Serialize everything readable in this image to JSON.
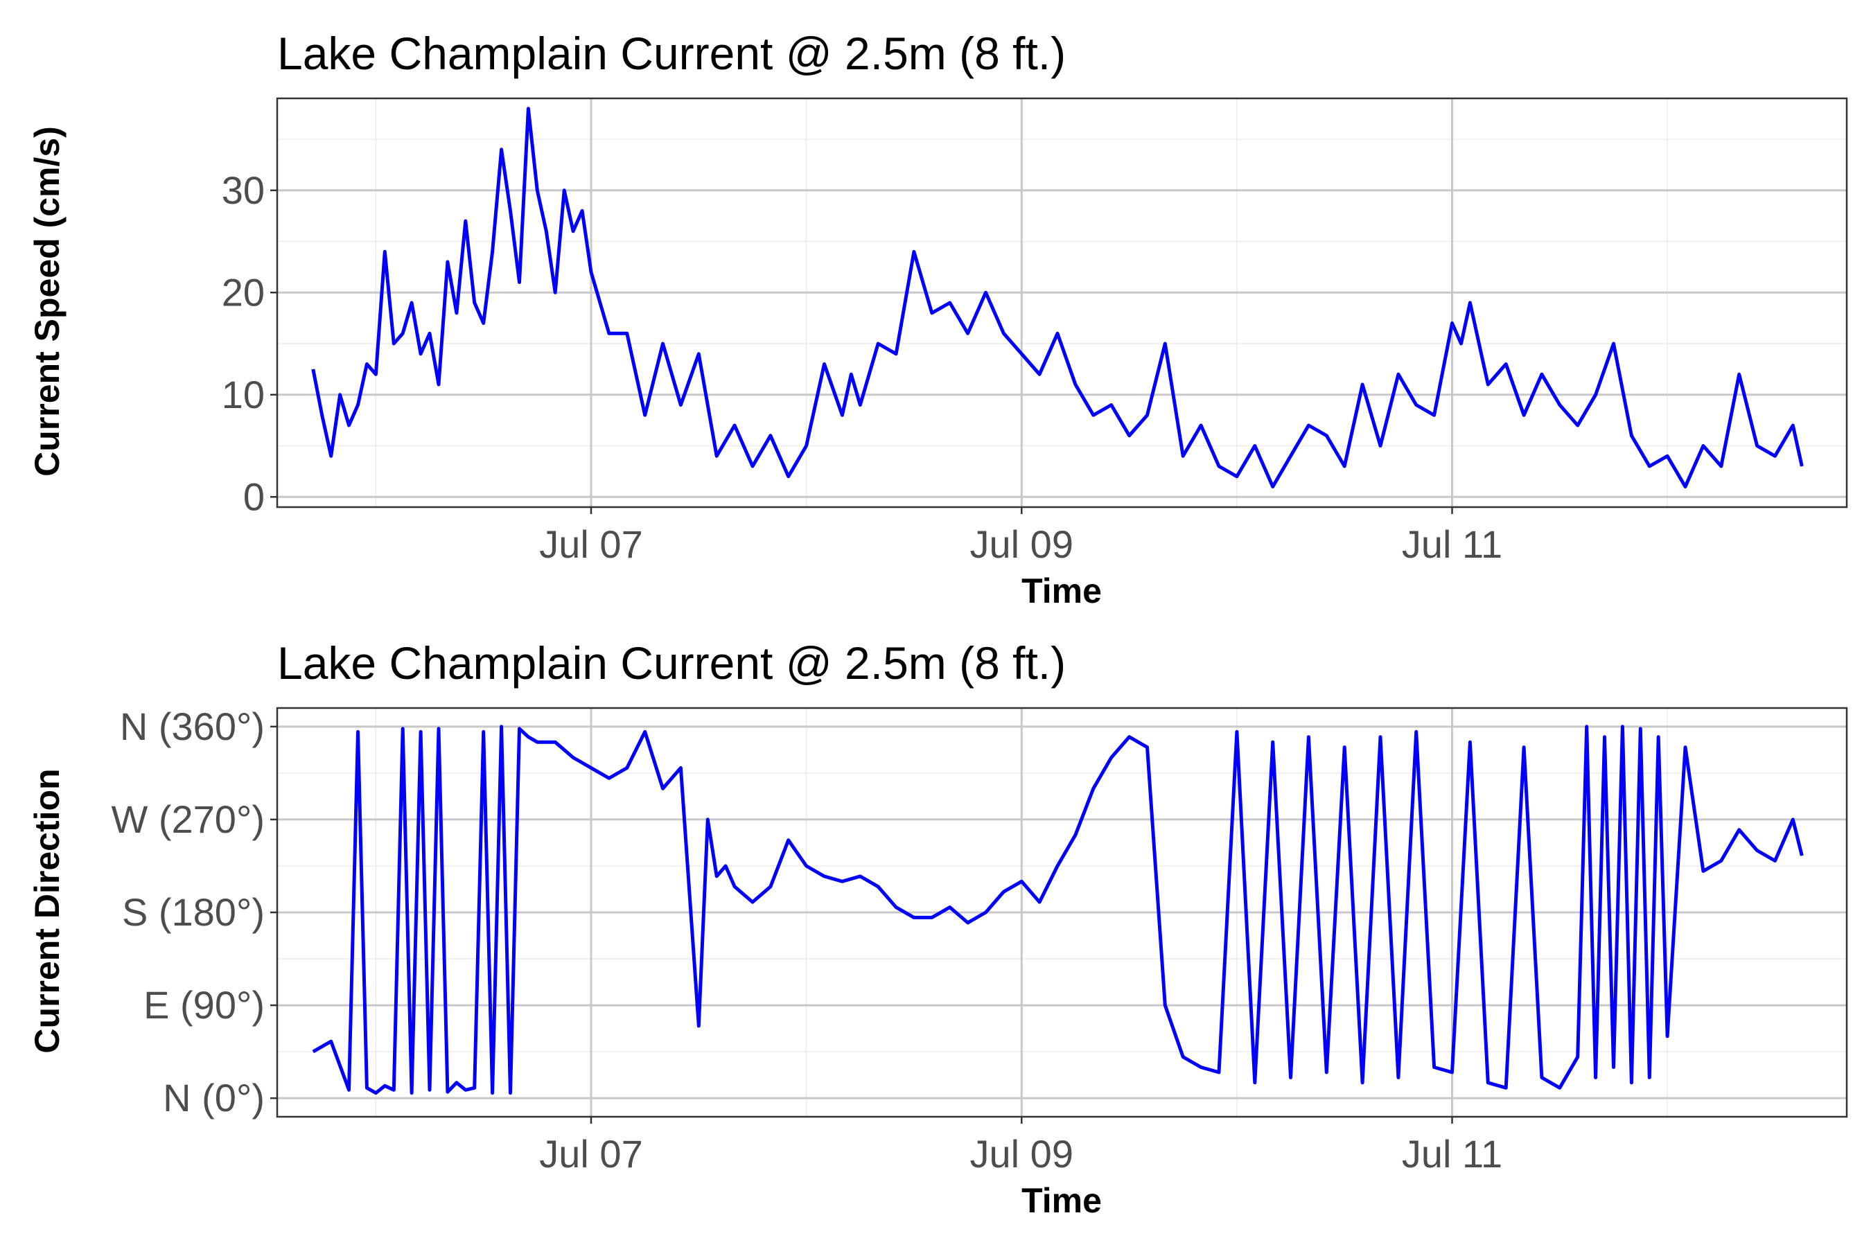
{
  "chart_data": [
    {
      "type": "line",
      "title": "Lake Champlain Current @ 2.5m (8 ft.)",
      "xlabel": "Time",
      "ylabel": "Current Speed (cm/s)",
      "x_ticks": [
        "Jul 07",
        "Jul 09",
        "Jul 11"
      ],
      "y_ticks": [
        "0",
        "10",
        "20",
        "30"
      ],
      "ylim": [
        -1,
        39
      ],
      "xlim": [
        "2023-07-05T13:00",
        "2023-07-12T20:00"
      ],
      "grid": true,
      "series": [
        {
          "color": "#0000ff",
          "x": [
            "07-05 17:00",
            "07-05 18:00",
            "07-05 19:00",
            "07-05 20:00",
            "07-05 21:00",
            "07-05 22:00",
            "07-05 23:00",
            "07-06 00:00",
            "07-06 01:00",
            "07-06 02:00",
            "07-06 03:00",
            "07-06 04:00",
            "07-06 05:00",
            "07-06 06:00",
            "07-06 07:00",
            "07-06 08:00",
            "07-06 09:00",
            "07-06 10:00",
            "07-06 11:00",
            "07-06 12:00",
            "07-06 13:00",
            "07-06 14:00",
            "07-06 15:00",
            "07-06 16:00",
            "07-06 17:00",
            "07-06 18:00",
            "07-06 19:00",
            "07-06 20:00",
            "07-06 21:00",
            "07-06 22:00",
            "07-06 23:00",
            "07-07 00:00",
            "07-07 02:00",
            "07-07 04:00",
            "07-07 06:00",
            "07-07 08:00",
            "07-07 10:00",
            "07-07 12:00",
            "07-07 14:00",
            "07-07 16:00",
            "07-07 18:00",
            "07-07 20:00",
            "07-07 22:00",
            "07-08 00:00",
            "07-08 02:00",
            "07-08 04:00",
            "07-08 05:00",
            "07-08 06:00",
            "07-08 08:00",
            "07-08 10:00",
            "07-08 12:00",
            "07-08 14:00",
            "07-08 16:00",
            "07-08 18:00",
            "07-08 20:00",
            "07-08 22:00",
            "07-09 00:00",
            "07-09 02:00",
            "07-09 04:00",
            "07-09 06:00",
            "07-09 08:00",
            "07-09 10:00",
            "07-09 12:00",
            "07-09 14:00",
            "07-09 16:00",
            "07-09 18:00",
            "07-09 20:00",
            "07-09 22:00",
            "07-10 00:00",
            "07-10 02:00",
            "07-10 04:00",
            "07-10 06:00",
            "07-10 08:00",
            "07-10 10:00",
            "07-10 12:00",
            "07-10 14:00",
            "07-10 16:00",
            "07-10 18:00",
            "07-10 20:00",
            "07-10 22:00",
            "07-11 00:00",
            "07-11 01:00",
            "07-11 02:00",
            "07-11 04:00",
            "07-11 06:00",
            "07-11 08:00",
            "07-11 10:00",
            "07-11 12:00",
            "07-11 14:00",
            "07-11 16:00",
            "07-11 18:00",
            "07-11 20:00",
            "07-11 22:00",
            "07-12 00:00",
            "07-12 02:00",
            "07-12 04:00",
            "07-12 06:00",
            "07-12 08:00",
            "07-12 10:00",
            "07-12 12:00",
            "07-12 14:00",
            "07-12 15:00"
          ],
          "y": [
            12.5,
            8,
            4,
            10,
            7,
            9,
            13,
            12,
            24,
            15,
            16,
            19,
            14,
            16,
            11,
            23,
            18,
            27,
            19,
            17,
            24,
            34,
            28,
            21,
            38,
            30,
            26,
            20,
            30,
            26,
            28,
            22,
            16,
            16,
            8,
            15,
            9,
            14,
            4,
            7,
            3,
            6,
            2,
            5,
            13,
            8,
            12,
            9,
            15,
            14,
            24,
            18,
            19,
            16,
            20,
            16,
            14,
            12,
            16,
            11,
            8,
            9,
            6,
            8,
            15,
            4,
            7,
            3,
            2,
            5,
            1,
            4,
            7,
            6,
            3,
            11,
            5,
            12,
            9,
            8,
            17,
            15,
            19,
            11,
            13,
            8,
            12,
            9,
            7,
            10,
            15,
            6,
            3,
            4,
            1,
            5,
            3,
            12,
            5,
            4,
            7,
            3
          ]
        }
      ]
    },
    {
      "type": "line",
      "title": "Lake Champlain Current @ 2.5m (8 ft.)",
      "xlabel": "Time",
      "ylabel": "Current Direction",
      "x_ticks": [
        "Jul 07",
        "Jul 09",
        "Jul 11"
      ],
      "y_ticks": [
        "N (0°)",
        "E (90°)",
        "S (180°)",
        "W (270°)",
        "N (360°)"
      ],
      "ylim": [
        -18,
        378
      ],
      "xlim": [
        "2023-07-05T13:00",
        "2023-07-12T20:00"
      ],
      "grid": true,
      "series": [
        {
          "color": "#0000ff",
          "x": [
            "07-05 17:00",
            "07-05 19:00",
            "07-05 21:00",
            "07-05 22:00",
            "07-05 23:00",
            "07-06 00:00",
            "07-06 01:00",
            "07-06 02:00",
            "07-06 03:00",
            "07-06 04:00",
            "07-06 05:00",
            "07-06 06:00",
            "07-06 07:00",
            "07-06 08:00",
            "07-06 09:00",
            "07-06 10:00",
            "07-06 11:00",
            "07-06 12:00",
            "07-06 13:00",
            "07-06 14:00",
            "07-06 15:00",
            "07-06 16:00",
            "07-06 17:00",
            "07-06 18:00",
            "07-06 19:00",
            "07-06 20:00",
            "07-06 22:00",
            "07-07 00:00",
            "07-07 02:00",
            "07-07 04:00",
            "07-07 06:00",
            "07-07 08:00",
            "07-07 10:00",
            "07-07 12:00",
            "07-07 13:00",
            "07-07 14:00",
            "07-07 15:00",
            "07-07 16:00",
            "07-07 18:00",
            "07-07 20:00",
            "07-07 22:00",
            "07-08 00:00",
            "07-08 02:00",
            "07-08 04:00",
            "07-08 06:00",
            "07-08 08:00",
            "07-08 10:00",
            "07-08 12:00",
            "07-08 14:00",
            "07-08 16:00",
            "07-08 18:00",
            "07-08 20:00",
            "07-08 22:00",
            "07-09 00:00",
            "07-09 02:00",
            "07-09 04:00",
            "07-09 06:00",
            "07-09 08:00",
            "07-09 10:00",
            "07-09 12:00",
            "07-09 14:00",
            "07-09 16:00",
            "07-09 18:00",
            "07-09 20:00",
            "07-09 22:00",
            "07-10 00:00",
            "07-10 02:00",
            "07-10 04:00",
            "07-10 06:00",
            "07-10 08:00",
            "07-10 10:00",
            "07-10 12:00",
            "07-10 14:00",
            "07-10 16:00",
            "07-10 18:00",
            "07-10 20:00",
            "07-10 22:00",
            "07-11 00:00",
            "07-11 02:00",
            "07-11 04:00",
            "07-11 06:00",
            "07-11 08:00",
            "07-11 10:00",
            "07-11 12:00",
            "07-11 14:00",
            "07-11 15:00",
            "07-11 16:00",
            "07-11 17:00",
            "07-11 18:00",
            "07-11 19:00",
            "07-11 20:00",
            "07-11 21:00",
            "07-11 22:00",
            "07-11 23:00",
            "07-12 00:00",
            "07-12 02:00",
            "07-12 04:00",
            "07-12 06:00",
            "07-12 08:00",
            "07-12 10:00",
            "07-12 12:00",
            "07-12 14:00",
            "07-12 15:00"
          ],
          "y": [
            45,
            55,
            8,
            355,
            10,
            5,
            12,
            8,
            358,
            5,
            355,
            8,
            358,
            6,
            15,
            8,
            10,
            355,
            5,
            360,
            5,
            358,
            350,
            345,
            345,
            345,
            330,
            320,
            310,
            320,
            355,
            300,
            320,
            70,
            270,
            215,
            225,
            205,
            190,
            205,
            250,
            225,
            215,
            210,
            215,
            205,
            185,
            175,
            175,
            185,
            170,
            180,
            200,
            210,
            190,
            225,
            255,
            300,
            330,
            350,
            340,
            90,
            40,
            30,
            25,
            355,
            15,
            345,
            20,
            350,
            25,
            340,
            15,
            350,
            20,
            355,
            30,
            25,
            345,
            15,
            10,
            340,
            20,
            10,
            40,
            360,
            20,
            350,
            30,
            360,
            15,
            358,
            20,
            350,
            60,
            340,
            220,
            230,
            260,
            240,
            230,
            270,
            235
          ]
        }
      ]
    }
  ]
}
